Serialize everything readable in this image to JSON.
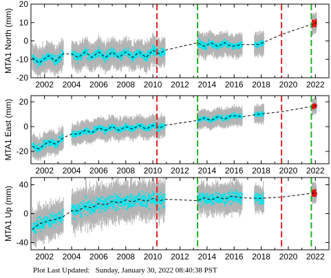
{
  "footer": {
    "label": "Plot Last Updated:",
    "datetime": "Sunday, January 30, 2022 08:40:38 PST"
  },
  "colors": {
    "error_bars": "#b4b4b4",
    "data": "#00e5ee",
    "trend": "#000000",
    "recent_data": "#e01010",
    "red_event": "#e82020",
    "green_event": "#20b020",
    "frame": "#000000"
  },
  "chart_data": [
    {
      "type": "scatter",
      "ylabel": "MTA1 North (mm)",
      "xlim": [
        2001.0,
        2023.0
      ],
      "ylim": [
        -20,
        20
      ],
      "x_ticks": [
        2002,
        2004,
        2006,
        2008,
        2010,
        2012,
        2014,
        2016,
        2018,
        2020,
        2022
      ],
      "y_ticks": [
        -20,
        -10,
        0,
        10,
        20
      ],
      "event_lines": [
        {
          "x": 2010.3,
          "color": "red"
        },
        {
          "x": 2013.3,
          "color": "green"
        },
        {
          "x": 2019.5,
          "color": "red"
        },
        {
          "x": 2021.7,
          "color": "green"
        }
      ],
      "data_segments": [
        {
          "x": [
            2001.1,
            2003.4
          ],
          "center": -9,
          "spread": 4,
          "err": 6
        },
        {
          "x": [
            2004.0,
            2010.9
          ],
          "center": -8,
          "spread": 4,
          "err": 6
        },
        {
          "x": [
            2013.3,
            2016.6
          ],
          "center": -2,
          "spread": 3,
          "err": 5
        },
        {
          "x": [
            2017.5,
            2018.2
          ],
          "center": -1.5,
          "spread": 3,
          "err": 5
        }
      ],
      "recent_segment": {
        "x": [
          2021.75,
          2022.08
        ],
        "center": 10,
        "spread": 3,
        "err": 4
      },
      "trend": [
        {
          "x": 2001.1,
          "y": -9
        },
        {
          "x": 2001.6,
          "y": -12
        },
        {
          "x": 2002.3,
          "y": -8
        },
        {
          "x": 2002.8,
          "y": -11
        },
        {
          "x": 2003.4,
          "y": -7
        },
        {
          "x": 2004.0,
          "y": -7
        },
        {
          "x": 2004.5,
          "y": -9
        },
        {
          "x": 2005.0,
          "y": -6
        },
        {
          "x": 2005.5,
          "y": -9
        },
        {
          "x": 2006.0,
          "y": -6
        },
        {
          "x": 2006.5,
          "y": -9
        },
        {
          "x": 2007.0,
          "y": -6
        },
        {
          "x": 2007.5,
          "y": -9
        },
        {
          "x": 2008.0,
          "y": -6
        },
        {
          "x": 2008.5,
          "y": -9
        },
        {
          "x": 2009.0,
          "y": -6
        },
        {
          "x": 2009.5,
          "y": -9
        },
        {
          "x": 2010.0,
          "y": -5
        },
        {
          "x": 2010.5,
          "y": -7
        },
        {
          "x": 2010.9,
          "y": -5
        },
        {
          "x": 2013.3,
          "y": -1
        },
        {
          "x": 2013.8,
          "y": -3
        },
        {
          "x": 2014.3,
          "y": -1
        },
        {
          "x": 2014.8,
          "y": -3
        },
        {
          "x": 2015.3,
          "y": -1
        },
        {
          "x": 2015.8,
          "y": -3
        },
        {
          "x": 2016.6,
          "y": -2
        },
        {
          "x": 2017.8,
          "y": -2
        },
        {
          "x": 2019.5,
          "y": 3.5
        },
        {
          "x": 2022.1,
          "y": 10
        }
      ]
    },
    {
      "type": "scatter",
      "ylabel": "MTA1 East (mm)",
      "xlim": [
        2001.0,
        2023.0
      ],
      "ylim": [
        -30,
        25
      ],
      "x_ticks": [
        2002,
        2004,
        2006,
        2008,
        2010,
        2012,
        2014,
        2016,
        2018,
        2020,
        2022
      ],
      "y_ticks": [
        -20,
        0,
        20
      ],
      "event_lines": [
        {
          "x": 2010.3,
          "color": "red"
        },
        {
          "x": 2013.3,
          "color": "green"
        },
        {
          "x": 2019.5,
          "color": "red"
        },
        {
          "x": 2021.7,
          "color": "green"
        }
      ],
      "data_segments": [
        {
          "x": [
            2001.1,
            2003.4
          ],
          "center": -12,
          "spread": 5,
          "err": 7
        },
        {
          "x": [
            2004.0,
            2010.9
          ],
          "center": -2,
          "spread": 4,
          "err": 7
        },
        {
          "x": [
            2013.3,
            2016.6
          ],
          "center": 6,
          "spread": 3,
          "err": 6
        },
        {
          "x": [
            2017.5,
            2018.2
          ],
          "center": 10,
          "spread": 3,
          "err": 6
        }
      ],
      "recent_segment": {
        "x": [
          2021.75,
          2022.08
        ],
        "center": 16,
        "spread": 3,
        "err": 5
      },
      "trend": [
        {
          "x": 2001.1,
          "y": -16
        },
        {
          "x": 2001.6,
          "y": -18
        },
        {
          "x": 2002.3,
          "y": -12
        },
        {
          "x": 2002.8,
          "y": -14
        },
        {
          "x": 2003.4,
          "y": -9
        },
        {
          "x": 2004.0,
          "y": -6
        },
        {
          "x": 2004.5,
          "y": -6
        },
        {
          "x": 2005.0,
          "y": -3
        },
        {
          "x": 2005.5,
          "y": -5
        },
        {
          "x": 2006.0,
          "y": -1
        },
        {
          "x": 2006.5,
          "y": -3
        },
        {
          "x": 2007.0,
          "y": 0
        },
        {
          "x": 2007.5,
          "y": -3
        },
        {
          "x": 2008.0,
          "y": 0
        },
        {
          "x": 2008.5,
          "y": -2
        },
        {
          "x": 2009.0,
          "y": 1
        },
        {
          "x": 2009.5,
          "y": -2
        },
        {
          "x": 2010.0,
          "y": 1
        },
        {
          "x": 2010.5,
          "y": -1
        },
        {
          "x": 2010.9,
          "y": 1
        },
        {
          "x": 2013.3,
          "y": 5
        },
        {
          "x": 2013.8,
          "y": 7
        },
        {
          "x": 2014.3,
          "y": 5
        },
        {
          "x": 2014.8,
          "y": 8
        },
        {
          "x": 2015.3,
          "y": 6
        },
        {
          "x": 2015.8,
          "y": 9
        },
        {
          "x": 2016.6,
          "y": 8
        },
        {
          "x": 2017.8,
          "y": 10
        },
        {
          "x": 2019.5,
          "y": 12
        },
        {
          "x": 2022.1,
          "y": 17
        }
      ]
    },
    {
      "type": "scatter",
      "ylabel": "MTA1 Up (mm)",
      "xlim": [
        2001.0,
        2023.0
      ],
      "ylim": [
        -50,
        50
      ],
      "x_ticks": [
        2002,
        2004,
        2006,
        2008,
        2010,
        2012,
        2014,
        2016,
        2018,
        2020,
        2022
      ],
      "y_ticks": [
        -40,
        0,
        40
      ],
      "event_lines": [
        {
          "x": 2010.3,
          "color": "red"
        },
        {
          "x": 2013.3,
          "color": "green"
        },
        {
          "x": 2019.5,
          "color": "red"
        },
        {
          "x": 2021.7,
          "color": "green"
        }
      ],
      "data_segments": [
        {
          "x": [
            2001.1,
            2003.4
          ],
          "center": -12,
          "spread": 16,
          "err": 18
        },
        {
          "x": [
            2004.0,
            2010.9
          ],
          "center": 12,
          "spread": 18,
          "err": 20
        },
        {
          "x": [
            2013.3,
            2016.6
          ],
          "center": 20,
          "spread": 14,
          "err": 16
        },
        {
          "x": [
            2017.5,
            2018.2
          ],
          "center": 20,
          "spread": 12,
          "err": 14
        }
      ],
      "recent_segment": {
        "x": [
          2021.75,
          2022.08
        ],
        "center": 28,
        "spread": 8,
        "err": 10
      },
      "trend": [
        {
          "x": 2001.1,
          "y": -22
        },
        {
          "x": 2001.6,
          "y": -14
        },
        {
          "x": 2002.3,
          "y": -10
        },
        {
          "x": 2002.8,
          "y": -8
        },
        {
          "x": 2003.4,
          "y": -4
        },
        {
          "x": 2004.0,
          "y": 4
        },
        {
          "x": 2004.5,
          "y": 4
        },
        {
          "x": 2005.0,
          "y": 10
        },
        {
          "x": 2005.5,
          "y": 8
        },
        {
          "x": 2006.0,
          "y": 14
        },
        {
          "x": 2006.5,
          "y": 12
        },
        {
          "x": 2007.0,
          "y": 17
        },
        {
          "x": 2007.5,
          "y": 15
        },
        {
          "x": 2008.0,
          "y": 19
        },
        {
          "x": 2008.5,
          "y": 16
        },
        {
          "x": 2009.0,
          "y": 20
        },
        {
          "x": 2009.5,
          "y": 17
        },
        {
          "x": 2010.0,
          "y": 21
        },
        {
          "x": 2010.5,
          "y": 18
        },
        {
          "x": 2010.9,
          "y": 20
        },
        {
          "x": 2013.3,
          "y": 18
        },
        {
          "x": 2013.8,
          "y": 22
        },
        {
          "x": 2014.3,
          "y": 19
        },
        {
          "x": 2014.8,
          "y": 23
        },
        {
          "x": 2015.3,
          "y": 20
        },
        {
          "x": 2015.8,
          "y": 24
        },
        {
          "x": 2016.6,
          "y": 22
        },
        {
          "x": 2017.8,
          "y": 21
        },
        {
          "x": 2019.5,
          "y": 23
        },
        {
          "x": 2022.1,
          "y": 29
        }
      ]
    }
  ]
}
